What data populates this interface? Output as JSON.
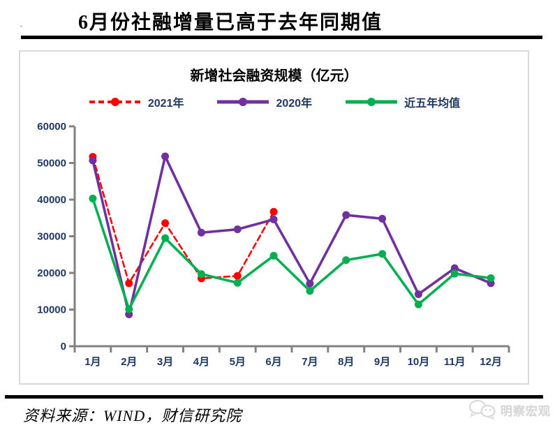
{
  "page": {
    "title": "6月份社融增量已高于去年同期值",
    "source_note": "资料来源：WIND，财信研究院",
    "watermark": "明察宏观"
  },
  "chart_data": {
    "type": "line",
    "title": "新增社会融资规模（亿元）",
    "categories": [
      "1月",
      "2月",
      "3月",
      "4月",
      "5月",
      "6月",
      "7月",
      "8月",
      "9月",
      "10月",
      "11月",
      "12月"
    ],
    "series": [
      {
        "name": "2021年",
        "color": "#FF0000",
        "style": "dashed",
        "values": [
          51700,
          17200,
          33600,
          18500,
          19200,
          36700,
          null,
          null,
          null,
          null,
          null,
          null
        ]
      },
      {
        "name": "2020年",
        "color": "#7030A0",
        "style": "solid",
        "values": [
          50700,
          8700,
          51800,
          31000,
          31900,
          34600,
          17100,
          35800,
          34800,
          14200,
          21300,
          17200
        ]
      },
      {
        "name": "近五年均值",
        "color": "#00B050",
        "style": "solid",
        "values": [
          40300,
          10100,
          29500,
          19700,
          17300,
          24700,
          15100,
          23500,
          25200,
          11400,
          19800,
          18600
        ]
      }
    ],
    "ylim": [
      0,
      60000
    ],
    "ytick_interval": 10000,
    "yticks": [
      "0",
      "10000",
      "20000",
      "30000",
      "40000",
      "50000",
      "60000"
    ],
    "xlabel": "",
    "ylabel": "",
    "grid": false,
    "legend_position": "top",
    "axis_color": "#828282",
    "tick_label_color": "#1F3864"
  }
}
